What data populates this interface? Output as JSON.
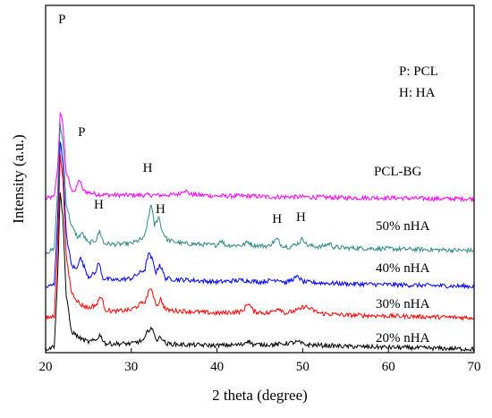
{
  "chart_data": {
    "type": "line",
    "title": "",
    "xlabel": "2 theta (degree)",
    "ylabel": "Intensity (a.u.)",
    "xlim": [
      20,
      70
    ],
    "xticks": [
      "20",
      "30",
      "40",
      "50",
      "60",
      "70"
    ],
    "yticks_shown": false,
    "grid": false,
    "legend": {
      "placement": "top-right",
      "lines": [
        "P: PCL",
        "H: HA"
      ]
    },
    "series": [
      {
        "name": "PCL-BG",
        "color": "#ff00ff",
        "baseline": 222,
        "x": [
          20,
          21.0,
          21.4,
          21.7,
          22.0,
          22.4,
          23.0,
          23.5,
          23.9,
          24.4,
          25,
          26,
          28,
          30,
          32,
          34,
          35.5,
          36.2,
          36.9,
          38,
          40,
          42,
          44,
          46,
          50,
          55,
          60,
          65,
          70
        ],
        "y": [
          0,
          2,
          35,
          95,
          85,
          30,
          10,
          9,
          22,
          9,
          7,
          5,
          4,
          4,
          4,
          4,
          5,
          10,
          5,
          4,
          3,
          3,
          3,
          2,
          2,
          1,
          1,
          0,
          0
        ]
      },
      {
        "name": "50% nHA",
        "color": "#2e8b84",
        "baseline": 282,
        "x": [
          20,
          21.0,
          21.4,
          21.7,
          22.0,
          22.4,
          23.0,
          23.8,
          24.2,
          25,
          25.9,
          26.3,
          26.8,
          28,
          30,
          31.5,
          32.0,
          32.3,
          32.7,
          33.2,
          33.6,
          34.2,
          35,
          36,
          38,
          40,
          40.4,
          41,
          43,
          43.6,
          44.2,
          46,
          47.0,
          47.5,
          48.5,
          49.6,
          50.0,
          50.5,
          52,
          53.2,
          53.6,
          55,
          60,
          65,
          70
        ],
        "y": [
          0,
          3,
          70,
          142,
          125,
          55,
          30,
          16,
          22,
          10,
          14,
          24,
          10,
          9,
          10,
          16,
          38,
          55,
          30,
          40,
          24,
          14,
          12,
          10,
          9,
          8,
          14,
          8,
          8,
          12,
          8,
          7,
          15,
          8,
          6,
          11,
          16,
          8,
          6,
          10,
          6,
          5,
          4,
          3,
          2
        ]
      },
      {
        "name": "40% nHA",
        "color": "#0000ff",
        "baseline": 321,
        "x": [
          20,
          21.0,
          21.4,
          21.7,
          22.0,
          22.4,
          23.0,
          23.6,
          24.0,
          25,
          25.8,
          26.2,
          26.7,
          28,
          30,
          31.6,
          32.0,
          32.4,
          32.9,
          33.3,
          34,
          35,
          37,
          40,
          43,
          45,
          47.2,
          48,
          49.5,
          50,
          52,
          55,
          60,
          65,
          70
        ],
        "y": [
          0,
          3,
          75,
          165,
          140,
          60,
          25,
          20,
          34,
          12,
          16,
          28,
          10,
          8,
          10,
          20,
          38,
          32,
          16,
          26,
          10,
          9,
          8,
          6,
          8,
          6,
          9,
          5,
          12,
          6,
          5,
          4,
          3,
          2,
          1
        ]
      },
      {
        "name": "30% nHA",
        "color": "#ff0000",
        "baseline": 356,
        "x": [
          20,
          21.0,
          21.4,
          21.7,
          22.0,
          22.4,
          23.0,
          24.0,
          25,
          26.0,
          26.4,
          27,
          28,
          30,
          31.7,
          32.1,
          32.5,
          33.0,
          33.4,
          34,
          35,
          37,
          40,
          43,
          43.6,
          44.3,
          46,
          47.2,
          48,
          49.6,
          50.2,
          52,
          55,
          60,
          65,
          70
        ],
        "y": [
          0,
          3,
          80,
          182,
          160,
          70,
          30,
          16,
          12,
          16,
          26,
          10,
          8,
          10,
          20,
          34,
          28,
          14,
          22,
          10,
          9,
          8,
          6,
          8,
          18,
          8,
          6,
          12,
          6,
          10,
          14,
          6,
          4,
          3,
          2,
          1
        ]
      },
      {
        "name": "20% nHA",
        "color": "#000000",
        "baseline": 390,
        "x": [
          20,
          21.0,
          21.4,
          21.7,
          22.0,
          22.4,
          23.0,
          24.0,
          25,
          25.9,
          26.3,
          27,
          30,
          31.5,
          31.9,
          32.3,
          33.0,
          33.5,
          34,
          36,
          40,
          43,
          43.6,
          44.2,
          47,
          49.5,
          50.2,
          55,
          60,
          65,
          70
        ],
        "y": [
          0,
          3,
          80,
          175,
          150,
          60,
          20,
          12,
          8,
          10,
          16,
          6,
          6,
          10,
          20,
          24,
          10,
          14,
          6,
          5,
          4,
          5,
          10,
          5,
          5,
          8,
          5,
          3,
          2,
          1,
          0
        ]
      }
    ],
    "curve_labels": [
      {
        "series": 0,
        "text": "PCL-BG"
      },
      {
        "series": 1,
        "text": "50% nHA"
      },
      {
        "series": 2,
        "text": "40% nHA"
      },
      {
        "series": 3,
        "text": "30% nHA"
      },
      {
        "series": 4,
        "text": "20% nHA"
      }
    ],
    "peak_labels": [
      {
        "text": "P",
        "x": 21.7
      },
      {
        "text": "P",
        "x": 24.0
      },
      {
        "text": "H",
        "x": 31.8
      },
      {
        "text": "H",
        "x": 26.2
      },
      {
        "text": "H",
        "x": 33.2
      },
      {
        "text": "H",
        "x": 47.0
      },
      {
        "text": "H",
        "x": 49.8
      }
    ]
  }
}
